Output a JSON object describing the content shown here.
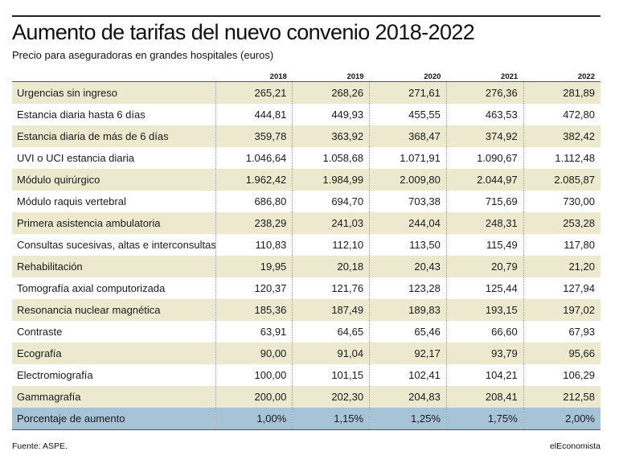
{
  "chart_data": {
    "type": "table",
    "title": "Aumento de tarifas del nuevo convenio 2018-2022",
    "subtitle": "Precio para aseguradoras en grandes hospitales (euros)",
    "columns": [
      "",
      "2018",
      "2019",
      "2020",
      "2021",
      "2022"
    ],
    "rows": [
      {
        "label": "Urgencias sin ingreso",
        "values": [
          "265,21",
          "268,26",
          "271,61",
          "276,36",
          "281,89"
        ]
      },
      {
        "label": "Estancia diaria hasta 6 días",
        "values": [
          "444,81",
          "449,93",
          "455,55",
          "463,53",
          "472,80"
        ]
      },
      {
        "label": "Estancia diaria de más de 6 días",
        "values": [
          "359,78",
          "363,92",
          "368,47",
          "374,92",
          "382,42"
        ]
      },
      {
        "label": "UVI o UCI estancia diaria",
        "values": [
          "1.046,64",
          "1.058,68",
          "1.071,91",
          "1.090,67",
          "1.112,48"
        ]
      },
      {
        "label": "Módulo quirúrgico",
        "values": [
          "1.962,42",
          "1.984,99",
          "2.009,80",
          "2.044,97",
          "2.085,87"
        ]
      },
      {
        "label": "Módulo raquis vertebral",
        "values": [
          "686,80",
          "694,70",
          "703,38",
          "715,69",
          "730,00"
        ]
      },
      {
        "label": "Primera asistencia ambulatoria",
        "values": [
          "238,29",
          "241,03",
          "244,04",
          "248,31",
          "253,28"
        ]
      },
      {
        "label": "Consultas sucesivas, altas e interconsultas",
        "values": [
          "110,83",
          "112,10",
          "113,50",
          "115,49",
          "117,80"
        ]
      },
      {
        "label": "Rehabilitación",
        "values": [
          "19,95",
          "20,18",
          "20,43",
          "20,79",
          "21,20"
        ]
      },
      {
        "label": "Tomografía axial computorizada",
        "values": [
          "120,37",
          "121,76",
          "123,28",
          "125,44",
          "127,94"
        ]
      },
      {
        "label": "Resonancia nuclear magnética",
        "values": [
          "185,36",
          "187,49",
          "189,83",
          "193,15",
          "197,02"
        ]
      },
      {
        "label": "Contraste",
        "values": [
          "63,91",
          "64,65",
          "65,46",
          "66,60",
          "67,93"
        ]
      },
      {
        "label": "Ecografía",
        "values": [
          "90,00",
          "91,04",
          "92,17",
          "93,79",
          "95,66"
        ]
      },
      {
        "label": "Electromiografía",
        "values": [
          "100,00",
          "101,15",
          "102,41",
          "104,21",
          "106,29"
        ]
      },
      {
        "label": "Gammagrafía",
        "values": [
          "200,00",
          "202,30",
          "204,83",
          "208,41",
          "212,58"
        ]
      }
    ],
    "total_row": {
      "label": "Porcentaje de aumento",
      "values": [
        "1,00%",
        "1,15%",
        "1,25%",
        "1,75%",
        "2,00%"
      ]
    },
    "colors": {
      "band": "#ede9cf",
      "total": "#a6c3d7"
    }
  },
  "footer": {
    "source": "Fuente: ASPE.",
    "brand": "elEconomista"
  }
}
